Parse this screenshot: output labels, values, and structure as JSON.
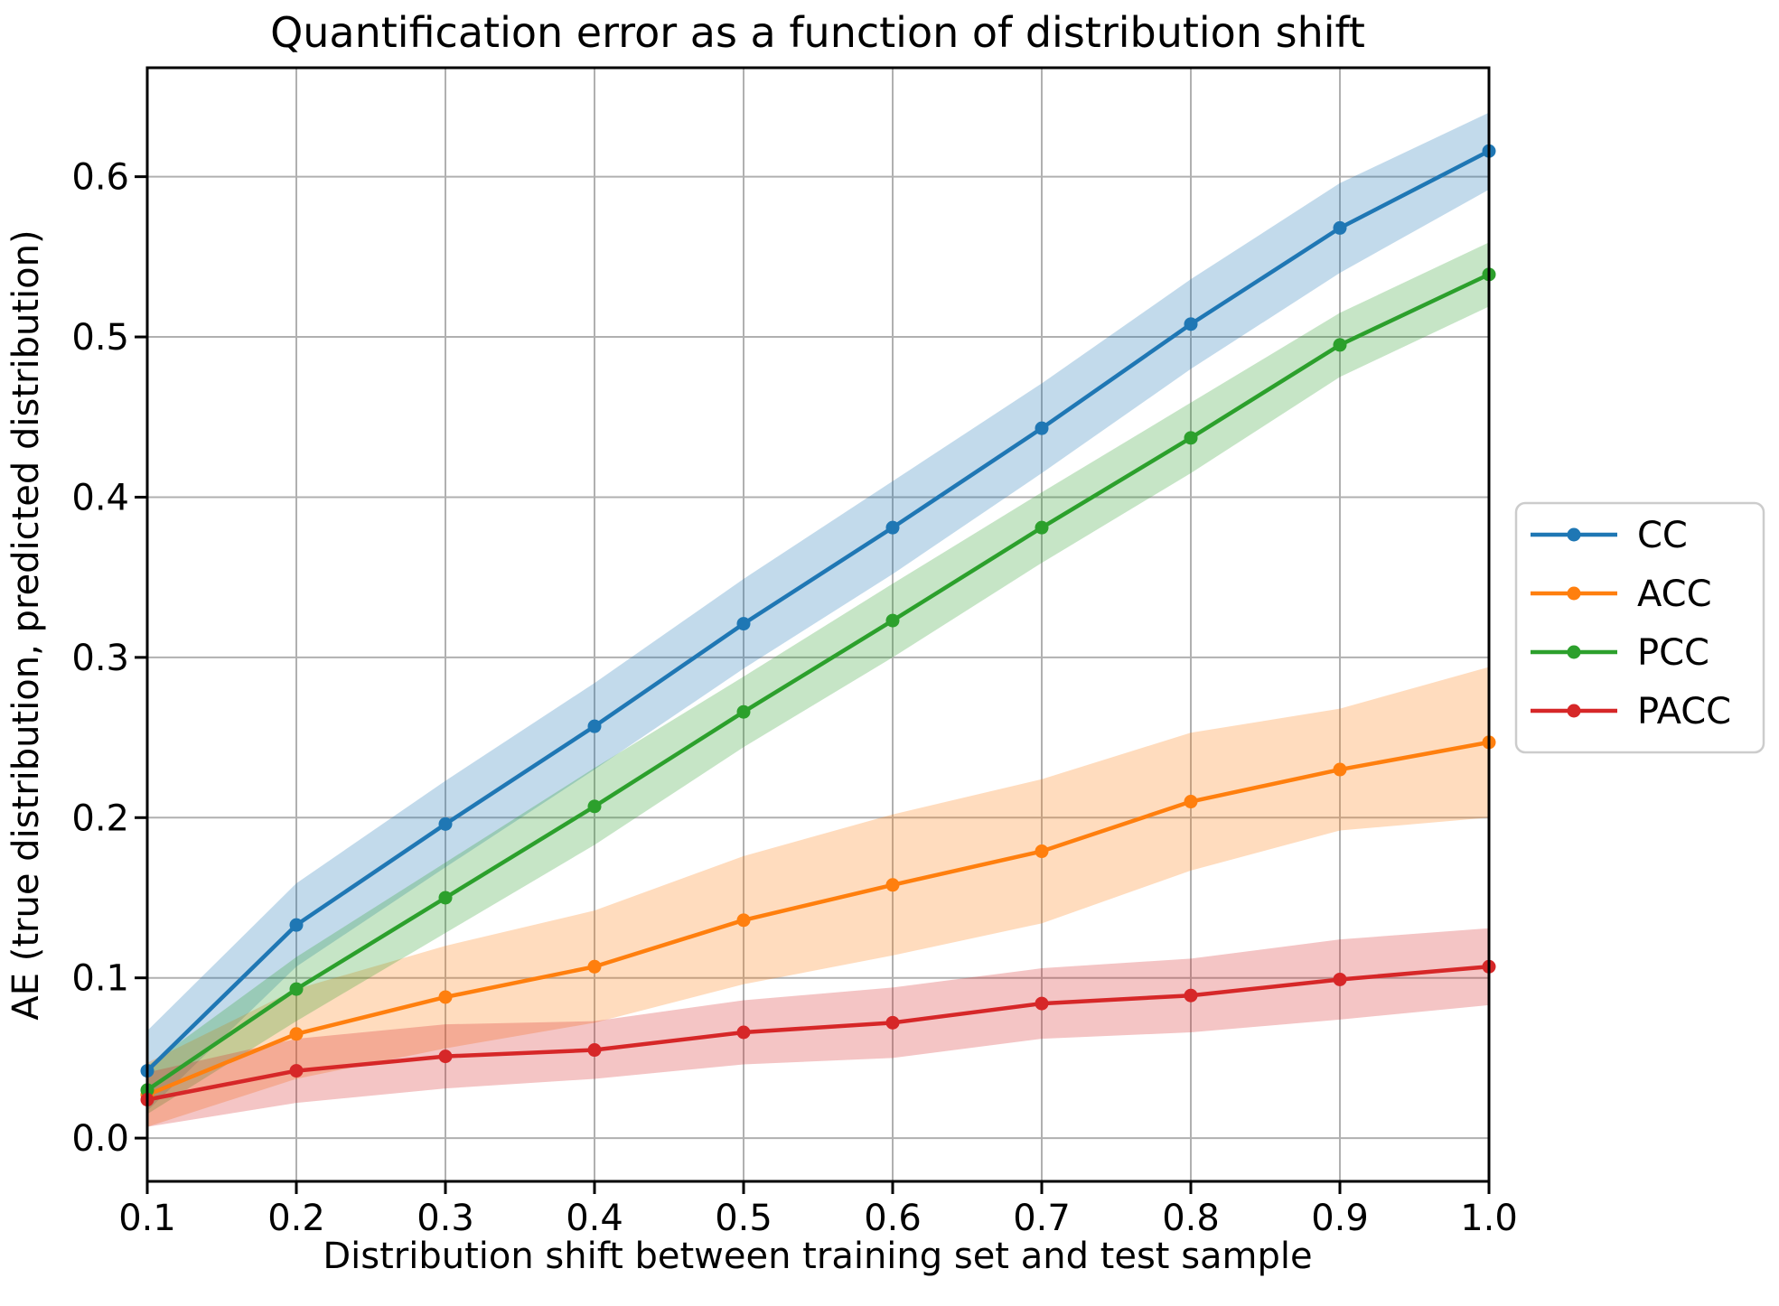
{
  "figure": {
    "background": "#ffffff",
    "grid_color": "#b0b0b0",
    "spine_color": "#000000",
    "legend_border_color": "#cccccc"
  },
  "chart_data": {
    "type": "line",
    "title": "Quantification error as a function of distribution shift",
    "xlabel": "Distribution shift between training set and test sample",
    "ylabel": "AE (true distribution, predicted distribution)",
    "x": [
      0.1,
      0.2,
      0.3,
      0.4,
      0.5,
      0.6,
      0.7,
      0.8,
      0.9,
      1.0
    ],
    "xlim": [
      0.1,
      1.0
    ],
    "ylim": [
      -0.027,
      0.668
    ],
    "xticks": [
      0.1,
      0.2,
      0.3,
      0.4,
      0.5,
      0.6,
      0.7,
      0.8,
      0.9,
      1.0
    ],
    "yticks": [
      0.0,
      0.1,
      0.2,
      0.3,
      0.4,
      0.5,
      0.6
    ],
    "xtick_labels": [
      "0.1",
      "0.2",
      "0.3",
      "0.4",
      "0.5",
      "0.6",
      "0.7",
      "0.8",
      "0.9",
      "1.0"
    ],
    "ytick_labels": [
      "0.0",
      "0.1",
      "0.2",
      "0.3",
      "0.4",
      "0.5",
      "0.6"
    ],
    "grid": true,
    "legend_position": "outside-right",
    "band_alpha": 0.27,
    "series": [
      {
        "name": "CC",
        "color": "#1f77b4",
        "values": [
          0.042,
          0.133,
          0.196,
          0.257,
          0.321,
          0.381,
          0.443,
          0.508,
          0.568,
          0.616
        ],
        "band_halfwidth": [
          0.025,
          0.026,
          0.027,
          0.027,
          0.028,
          0.029,
          0.028,
          0.028,
          0.028,
          0.024
        ]
      },
      {
        "name": "ACC",
        "color": "#ff7f0e",
        "values": [
          0.027,
          0.065,
          0.088,
          0.107,
          0.136,
          0.158,
          0.179,
          0.21,
          0.23,
          0.247
        ],
        "band_halfwidth": [
          0.02,
          0.028,
          0.032,
          0.035,
          0.04,
          0.044,
          0.045,
          0.043,
          0.038,
          0.047
        ]
      },
      {
        "name": "PCC",
        "color": "#2ca02c",
        "values": [
          0.03,
          0.093,
          0.15,
          0.207,
          0.266,
          0.323,
          0.381,
          0.437,
          0.495,
          0.539
        ],
        "band_halfwidth": [
          0.015,
          0.02,
          0.022,
          0.024,
          0.022,
          0.023,
          0.022,
          0.022,
          0.02,
          0.02
        ]
      },
      {
        "name": "PACC",
        "color": "#d62728",
        "values": [
          0.024,
          0.042,
          0.051,
          0.055,
          0.066,
          0.072,
          0.084,
          0.089,
          0.099,
          0.107
        ],
        "band_halfwidth": [
          0.017,
          0.02,
          0.02,
          0.018,
          0.02,
          0.022,
          0.022,
          0.023,
          0.025,
          0.024
        ]
      }
    ]
  }
}
